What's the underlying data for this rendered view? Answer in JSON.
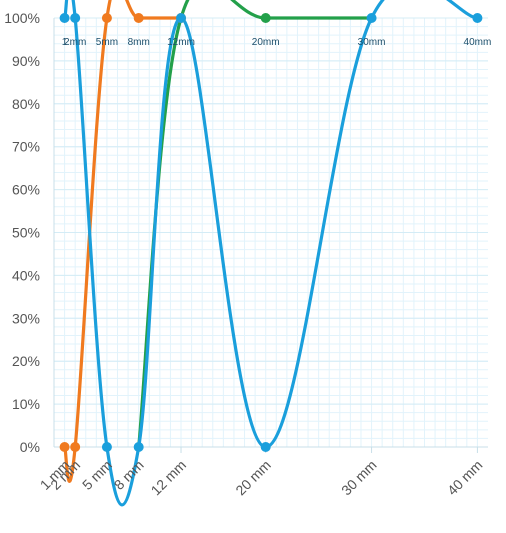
{
  "chart_data": {
    "type": "line",
    "x_scale": "linear",
    "x": [
      1,
      2,
      5,
      8,
      12,
      20,
      30,
      40
    ],
    "x_tick_labels": [
      "1 mm",
      "2 mm",
      "5 mm",
      "8 mm",
      "12 mm",
      "20 mm",
      "30 mm",
      "40 mm"
    ],
    "top_labels": [
      "1",
      "2mm",
      "5mm",
      "8mm",
      "12mm",
      "20mm",
      "30mm",
      "40mm"
    ],
    "ylim": [
      0,
      100
    ],
    "y_ticks": [
      0,
      10,
      20,
      30,
      40,
      50,
      60,
      70,
      80,
      90,
      100
    ],
    "y_tick_labels": [
      "0%",
      "10%",
      "20%",
      "30%",
      "40%",
      "50%",
      "60%",
      "70%",
      "80%",
      "90%",
      "100%"
    ],
    "grid": true,
    "series": [
      {
        "color": "#f07a1f",
        "x": [
          1,
          2,
          5,
          8,
          12
        ],
        "values": [
          0,
          0,
          100,
          100,
          100
        ],
        "markers": true
      },
      {
        "color": "#23a04a",
        "x": [
          8,
          12,
          20,
          30
        ],
        "values": [
          0,
          100,
          100,
          100
        ],
        "markers_at": [
          20
        ]
      },
      {
        "color": "#1a9fdc",
        "x": [
          1,
          2,
          5,
          8,
          12,
          20,
          30,
          40
        ],
        "values": [
          100,
          100,
          0,
          0,
          100,
          0,
          100,
          100
        ],
        "markers": true
      }
    ],
    "colors": {
      "grid": "#e2f3fb",
      "axis": "#c8dfe8",
      "text": "#555555",
      "top_label": "#1d4f6b"
    }
  }
}
